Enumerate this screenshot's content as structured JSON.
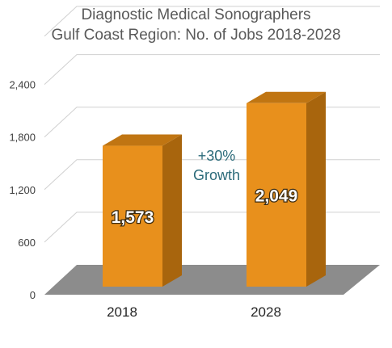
{
  "chart_data": {
    "type": "bar",
    "title": [
      "Diagnostic Medical Sonographers",
      "Gulf Coast Region: No. of Jobs 2018-2028"
    ],
    "categories": [
      "2018",
      "2028"
    ],
    "values": [
      1573,
      2049
    ],
    "value_labels": [
      "1,573",
      "2,049"
    ],
    "y_ticks": [
      0,
      600,
      1200,
      1800,
      2400
    ],
    "y_tick_labels": [
      "0",
      "600",
      "1,200",
      "1,800",
      "2,400"
    ],
    "ylim": [
      0,
      3000
    ],
    "xlabel": "",
    "ylabel": "",
    "annotation": [
      "+30%",
      "Growth"
    ],
    "grid": true,
    "three_d": true,
    "bar_color": "#e8901c",
    "bar_side_color": "#a8650d",
    "bar_top_color": "#c07512",
    "floor_color": "#8c8c8c",
    "annotation_color": "#2c6b7a"
  }
}
